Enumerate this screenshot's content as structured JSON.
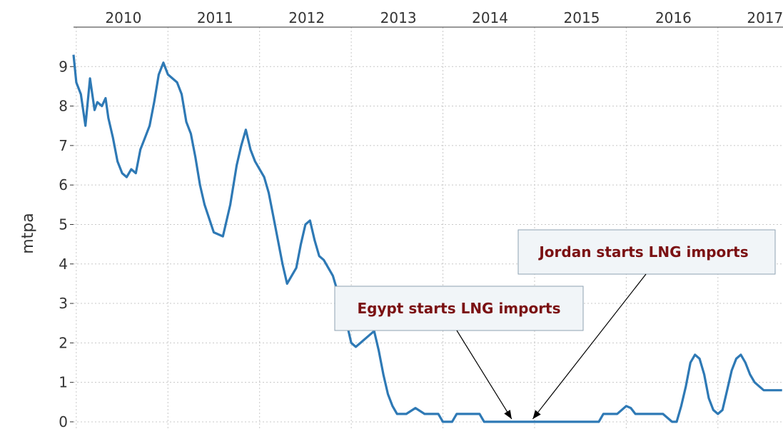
{
  "chart_data": {
    "type": "line",
    "title": "",
    "xlabel": "",
    "ylabel": "mtpa",
    "xlim": [
      2009.97,
      2017.71
    ],
    "ylim": [
      -0.2,
      10.0
    ],
    "x_tick_labels": [
      "2010",
      "2011",
      "2012",
      "2013",
      "2014",
      "2015",
      "2016",
      "2017"
    ],
    "x_tick_values": [
      2010,
      2011,
      2012,
      2013,
      2014,
      2015,
      2016,
      2017
    ],
    "y_ticks": [
      0,
      1,
      2,
      3,
      4,
      5,
      6,
      7,
      8,
      9
    ],
    "x_axis_position": "top",
    "grid": true,
    "series_color": "#2e79b5",
    "series": [
      {
        "name": "",
        "x": [
          2009.97,
          2010.0,
          2010.05,
          2010.1,
          2010.15,
          2010.2,
          2010.23,
          2010.28,
          2010.32,
          2010.35,
          2010.4,
          2010.45,
          2010.5,
          2010.55,
          2010.6,
          2010.65,
          2010.7,
          2010.75,
          2010.8,
          2010.85,
          2010.9,
          2010.95,
          2011.0,
          2011.05,
          2011.1,
          2011.15,
          2011.2,
          2011.25,
          2011.3,
          2011.35,
          2011.4,
          2011.5,
          2011.6,
          2011.68,
          2011.75,
          2011.8,
          2011.85,
          2011.9,
          2011.95,
          2012.0,
          2012.05,
          2012.1,
          2012.15,
          2012.2,
          2012.25,
          2012.3,
          2012.35,
          2012.4,
          2012.45,
          2012.5,
          2012.55,
          2012.6,
          2012.65,
          2012.7,
          2012.75,
          2012.8,
          2012.85,
          2012.9,
          2012.95,
          2013.0,
          2013.05,
          2013.1,
          2013.15,
          2013.2,
          2013.25,
          2013.3,
          2013.35,
          2013.4,
          2013.45,
          2013.5,
          2013.6,
          2013.7,
          2013.8,
          2013.88,
          2013.95,
          2014.0,
          2014.05,
          2014.1,
          2014.15,
          2014.2,
          2014.25,
          2014.3,
          2014.4,
          2014.45,
          2014.5,
          2014.6,
          2014.65,
          2014.7,
          2014.75,
          2014.8,
          2014.85,
          2014.9,
          2015.0,
          2015.2,
          2015.5,
          2015.7,
          2015.75,
          2015.8,
          2015.9,
          2016.0,
          2016.05,
          2016.1,
          2016.15,
          2016.2,
          2016.3,
          2016.4,
          2016.5,
          2016.55,
          2016.6,
          2016.65,
          2016.7,
          2016.75,
          2016.8,
          2016.85,
          2016.9,
          2016.95,
          2017.0,
          2017.05,
          2017.1,
          2017.15,
          2017.2,
          2017.25,
          2017.3,
          2017.35,
          2017.4,
          2017.45,
          2017.5,
          2017.55,
          2017.6,
          2017.65,
          2017.7
        ],
        "y": [
          9.3,
          8.6,
          8.3,
          7.5,
          8.7,
          7.9,
          8.1,
          8.0,
          8.2,
          7.7,
          7.2,
          6.6,
          6.3,
          6.2,
          6.4,
          6.3,
          6.9,
          7.2,
          7.5,
          8.1,
          8.8,
          9.1,
          8.8,
          8.7,
          8.6,
          8.3,
          7.6,
          7.3,
          6.7,
          6.0,
          5.5,
          4.8,
          4.7,
          5.5,
          6.5,
          7.0,
          7.4,
          6.9,
          6.6,
          6.4,
          6.2,
          5.8,
          5.2,
          4.6,
          4.0,
          3.5,
          3.7,
          3.9,
          4.5,
          5.0,
          5.1,
          4.6,
          4.2,
          4.1,
          3.9,
          3.7,
          3.3,
          2.9,
          2.5,
          2.0,
          1.9,
          2.0,
          2.1,
          2.2,
          2.3,
          1.8,
          1.2,
          0.7,
          0.4,
          0.2,
          0.2,
          0.35,
          0.2,
          0.2,
          0.2,
          0.0,
          0.0,
          0.0,
          0.2,
          0.2,
          0.2,
          0.2,
          0.2,
          0.0,
          0.0,
          0.0,
          0.0,
          0.0,
          0.0,
          0.0,
          0.0,
          0.0,
          0.0,
          0.0,
          0.0,
          0.0,
          0.2,
          0.2,
          0.2,
          0.4,
          0.35,
          0.2,
          0.2,
          0.2,
          0.2,
          0.2,
          0.0,
          0.0,
          0.4,
          0.9,
          1.5,
          1.7,
          1.6,
          1.2,
          0.6,
          0.3,
          0.2,
          0.3,
          0.8,
          1.3,
          1.6,
          1.7,
          1.5,
          1.2,
          1.0,
          0.9,
          0.8,
          0.8,
          0.8,
          0.8,
          0.8
        ]
      }
    ],
    "annotations": [
      {
        "text": "Egypt starts LNG imports",
        "target_x": 2014.75,
        "target_y": 0.0
      },
      {
        "text": "Jordan starts LNG imports",
        "target_x": 2014.98,
        "target_y": 0.0
      }
    ]
  }
}
